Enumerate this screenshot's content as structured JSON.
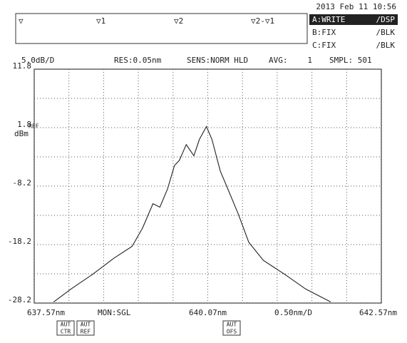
{
  "screen": {
    "datetime": "2013 Feb 11 10:56",
    "markers": [
      "▽",
      "▽1",
      "▽2",
      "▽2-▽1"
    ],
    "traces": [
      [
        "A:WRITE",
        "/DSP"
      ],
      [
        "B:FIX",
        "/BLK"
      ],
      [
        "C:FIX",
        "/BLK"
      ]
    ],
    "settings": {
      "scale": "5.0dB/D",
      "res": "RES:0.05nm",
      "sens": "SENS:NORM HLD",
      "avg_label": "AVG:",
      "avg_value": "1",
      "smpl": "SMPL: 501"
    },
    "ref": "REF",
    "unit": "dBm",
    "monitor": "MON:SGL",
    "span_div": "0.50nm/D",
    "buttons": [
      [
        "AUT",
        "CTR"
      ],
      [
        "AUT",
        "REF"
      ],
      [
        "AUT",
        "OFS"
      ]
    ]
  },
  "chart_data": {
    "type": "line",
    "x": [
      637.85,
      638.1,
      638.41,
      638.72,
      638.98,
      639.13,
      639.28,
      639.38,
      639.49,
      639.59,
      639.66,
      639.76,
      639.87,
      639.95,
      640.05,
      640.13,
      640.25,
      640.36,
      640.51,
      640.66,
      640.87,
      641.18,
      641.48,
      641.84
    ],
    "values": [
      -28.0,
      -25.8,
      -23.3,
      -20.5,
      -18.5,
      -15.4,
      -11.2,
      -11.8,
      -8.7,
      -4.7,
      -3.8,
      -1.1,
      -3.0,
      -0.2,
      2.0,
      -0.2,
      -5.6,
      -8.7,
      -13.0,
      -17.8,
      -20.9,
      -23.3,
      -25.8,
      -28.0
    ],
    "color": "#222222",
    "xlim": [
      637.57,
      642.57
    ],
    "xticks": [
      {
        "value": 637.57,
        "label": "637.57nm"
      },
      {
        "value": 640.07,
        "label": "640.07nm"
      },
      {
        "value": 642.57,
        "label": "642.57nm"
      }
    ],
    "xminor": [
      638.07,
      638.57,
      639.07,
      639.57,
      640.57,
      641.07,
      641.57,
      642.07
    ],
    "ylim": [
      -28.2,
      11.8
    ],
    "yticks": [
      11.8,
      1.8,
      -8.2,
      -18.2,
      -28.2
    ],
    "yminor": [
      6.8,
      -3.2,
      -13.2,
      -23.2
    ],
    "grid": true
  }
}
